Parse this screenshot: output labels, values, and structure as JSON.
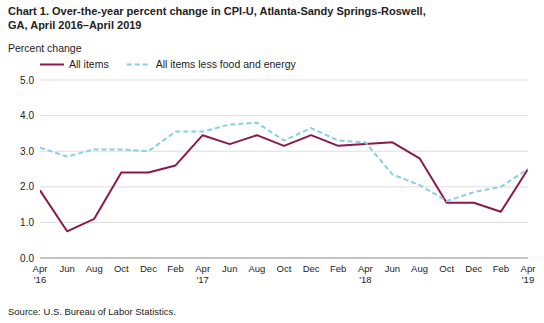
{
  "chart_data": {
    "type": "line",
    "title": "Chart 1. Over-the-year percent change in CPI-U, Atlanta-Sandy Springs-Roswell,\nGA, April 2016–April 2019",
    "ylabel": "Percent change",
    "source": "Source: U.S. Bureau of Labor Statistics.",
    "categories": [
      "Apr\n'16",
      "Jun",
      "Aug",
      "Oct",
      "Dec",
      "Feb",
      "Apr\n'17",
      "Jun",
      "Aug",
      "Oct",
      "Dec",
      "Feb",
      "Apr\n'18",
      "Jun",
      "Aug",
      "Oct",
      "Dec",
      "Feb",
      "Apr\n'19"
    ],
    "series": [
      {
        "name": "All items",
        "color": "#8B1A4A",
        "line_style": "solid",
        "values": [
          1.9,
          0.75,
          1.1,
          2.4,
          2.4,
          2.6,
          3.45,
          3.2,
          3.45,
          3.15,
          3.45,
          3.15,
          3.2,
          3.25,
          2.8,
          1.55,
          1.55,
          1.3,
          2.5
        ]
      },
      {
        "name": "All items less food and energy",
        "color": "#87CEEB",
        "line_style": "dashed",
        "values": [
          3.1,
          2.85,
          3.05,
          3.05,
          3.0,
          3.55,
          3.55,
          3.75,
          3.8,
          3.3,
          3.65,
          3.3,
          3.25,
          2.35,
          2.05,
          1.6,
          1.85,
          2.0,
          2.5
        ]
      }
    ],
    "ylim": [
      0.0,
      5.0
    ],
    "yticks": [
      {
        "value": 0,
        "label": "0.0"
      },
      {
        "value": 1,
        "label": "1.0"
      },
      {
        "value": 2,
        "label": "2.0"
      },
      {
        "value": 3,
        "label": "3.0"
      },
      {
        "value": 4,
        "label": "4.0"
      },
      {
        "value": 5,
        "label": "5.0"
      }
    ],
    "grid": true,
    "legend": "top"
  }
}
